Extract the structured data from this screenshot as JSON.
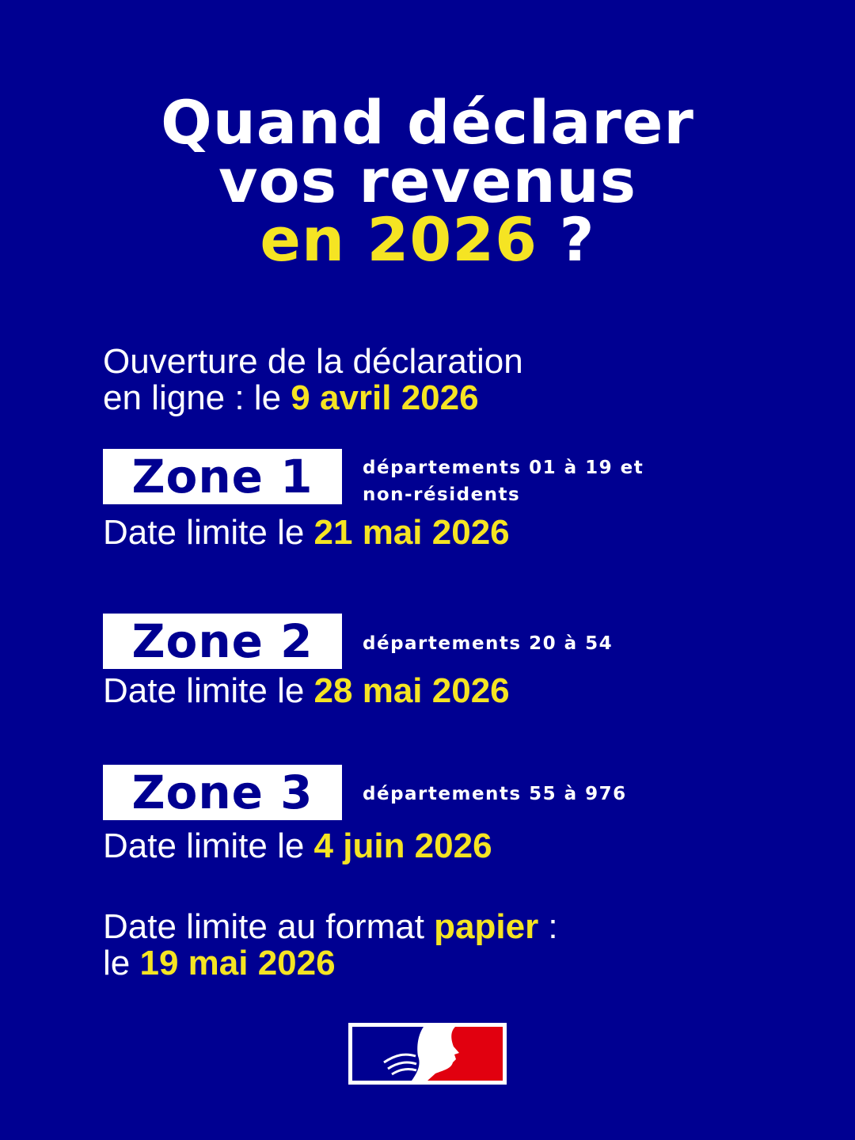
{
  "title": {
    "line1": "Quand déclarer",
    "line2": "vos revenus",
    "line3_highlight": "en 2026",
    "line3_rest": " ?"
  },
  "opening": {
    "line1": "Ouverture de la déclaration",
    "line2_prefix": "en ligne : le ",
    "date": "9 avril 2026"
  },
  "zones": [
    {
      "label": "Zone 1",
      "departments": "départements 01 à 19 et non-résidents",
      "deadline_prefix": "Date limite le ",
      "deadline": "21 mai 2026"
    },
    {
      "label": "Zone 2",
      "departments": "départements 20 à 54",
      "deadline_prefix": "Date limite le ",
      "deadline": "28 mai 2026"
    },
    {
      "label": "Zone 3",
      "departments": "départements 55 à 976",
      "deadline_prefix": "Date limite le ",
      "deadline": "4 juin 2026"
    }
  ],
  "paper": {
    "line1_prefix": "Date limite au format ",
    "highlight": "papier",
    "line1_suffix": " :",
    "line2_prefix": "le ",
    "date": "19 mai 2026"
  },
  "logo": {
    "name": "Marianne République Française",
    "colors": {
      "blue": "#000091",
      "red": "#e1000f",
      "white": "#ffffff"
    }
  },
  "colors": {
    "background": "#000091",
    "accent": "#f5e423",
    "text": "#ffffff"
  }
}
